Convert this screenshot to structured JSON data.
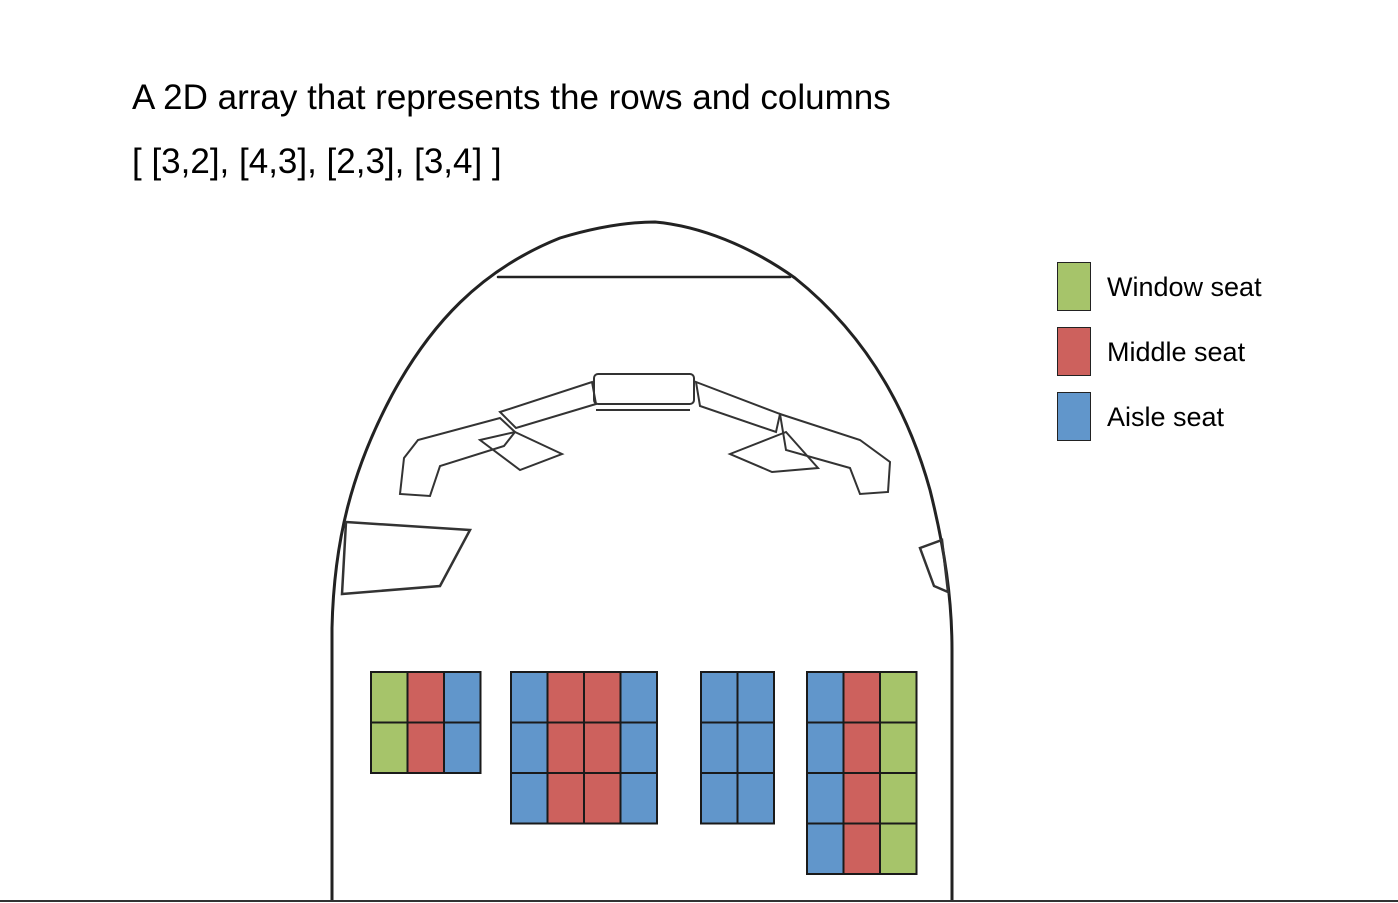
{
  "heading": {
    "title": "A 2D array that represents the rows and columns",
    "array_literal": "[ [3,2], [4,3], [2,3], [3,4] ]"
  },
  "legend": [
    {
      "label": "Window seat",
      "color": "#a6c46a",
      "icon": "window-seat-swatch"
    },
    {
      "label": "Middle seat",
      "color": "#cd615d",
      "icon": "middle-seat-swatch"
    },
    {
      "label": "Aisle seat",
      "color": "#6196cb",
      "icon": "aisle-seat-swatch"
    }
  ],
  "seat_blocks": [
    {
      "columns": 3,
      "rows": 2,
      "column_types": [
        "window",
        "middle",
        "aisle"
      ]
    },
    {
      "columns": 4,
      "rows": 3,
      "column_types": [
        "aisle",
        "middle",
        "middle",
        "aisle"
      ]
    },
    {
      "columns": 2,
      "rows": 3,
      "column_types": [
        "aisle",
        "aisle"
      ]
    },
    {
      "columns": 3,
      "rows": 4,
      "column_types": [
        "aisle",
        "middle",
        "window"
      ]
    }
  ]
}
